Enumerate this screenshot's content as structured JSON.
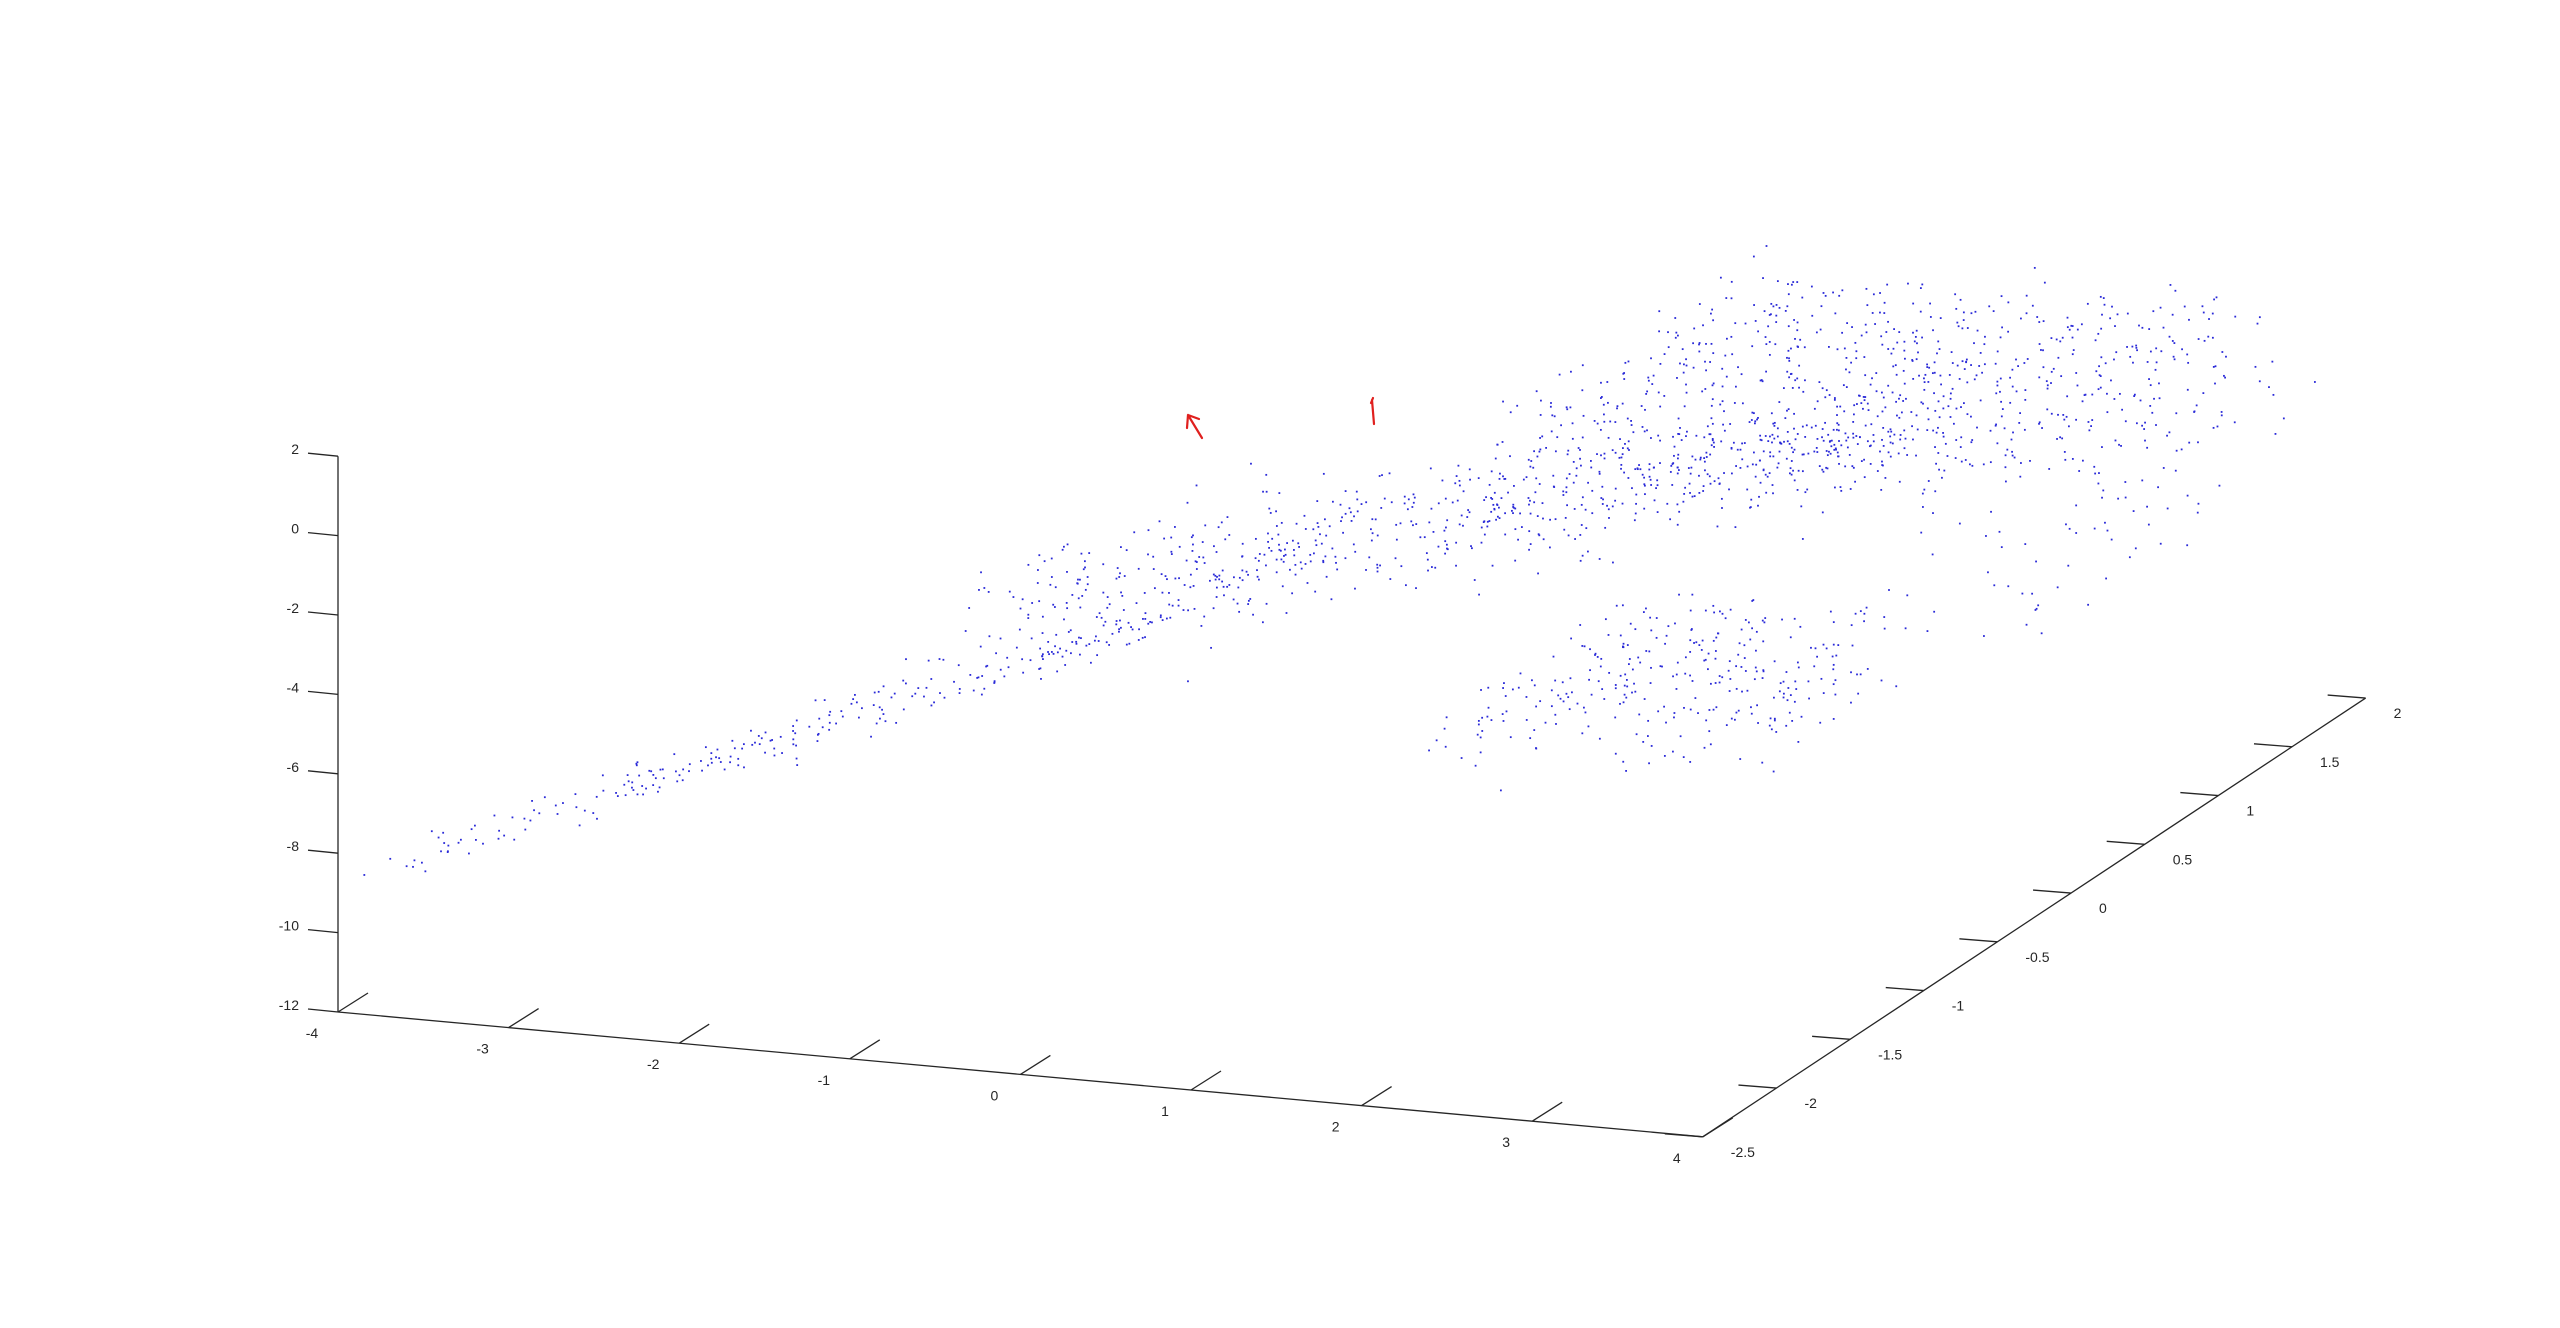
{
  "chart_data": {
    "type": "scatter",
    "dimensions": 3,
    "title": "",
    "xlabel": "",
    "ylabel": "",
    "zlabel": "",
    "xlim": [
      -4,
      4
    ],
    "ylim": [
      -2.5,
      2
    ],
    "zlim": [
      -12,
      2
    ],
    "x_ticks": [
      "-4",
      "-3",
      "-2",
      "-1",
      "0",
      "1",
      "2",
      "3",
      "4"
    ],
    "y_ticks": [
      "-2.5",
      "-2",
      "-1.5",
      "-1",
      "-0.5",
      "0",
      "0.5",
      "1",
      "1.5",
      "2"
    ],
    "z_ticks": [
      "2",
      "0",
      "-2",
      "-4",
      "-6",
      "-8",
      "-10",
      "-12"
    ],
    "grid": false,
    "marker_color": "#2a2ad8",
    "annotation_color": "#e0201e",
    "point_cloud": {
      "description": "curved sheet of points; tail near x=-3.9,y=-2.4,z=-8.7 rising to a broad plateau near z=-2 to -4 around x=0..3, y=0..2",
      "approx_count": 2000
    }
  }
}
